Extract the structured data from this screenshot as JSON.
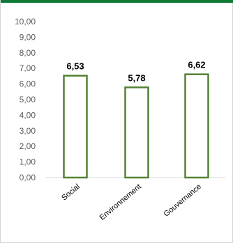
{
  "colors": {
    "header_bar": "#0f7a36",
    "bar_stroke": "#538135",
    "bar_fill": "#ffffff",
    "axis_line": "#d9d9d9"
  },
  "chart_data": {
    "type": "bar",
    "categories": [
      "Social",
      "Environnement",
      "Gouvernance"
    ],
    "values": [
      6.53,
      5.78,
      6.62
    ],
    "data_labels": [
      "6,53",
      "5,78",
      "6,62"
    ],
    "y_tick_labels": [
      "0,00",
      "1,00",
      "2,00",
      "3,00",
      "4,00",
      "5,00",
      "6,00",
      "7,00",
      "8,00",
      "9,00",
      "10,00"
    ],
    "ylim": [
      0,
      10
    ],
    "title": "",
    "xlabel": "",
    "ylabel": "",
    "grid": false,
    "legend": "none"
  }
}
